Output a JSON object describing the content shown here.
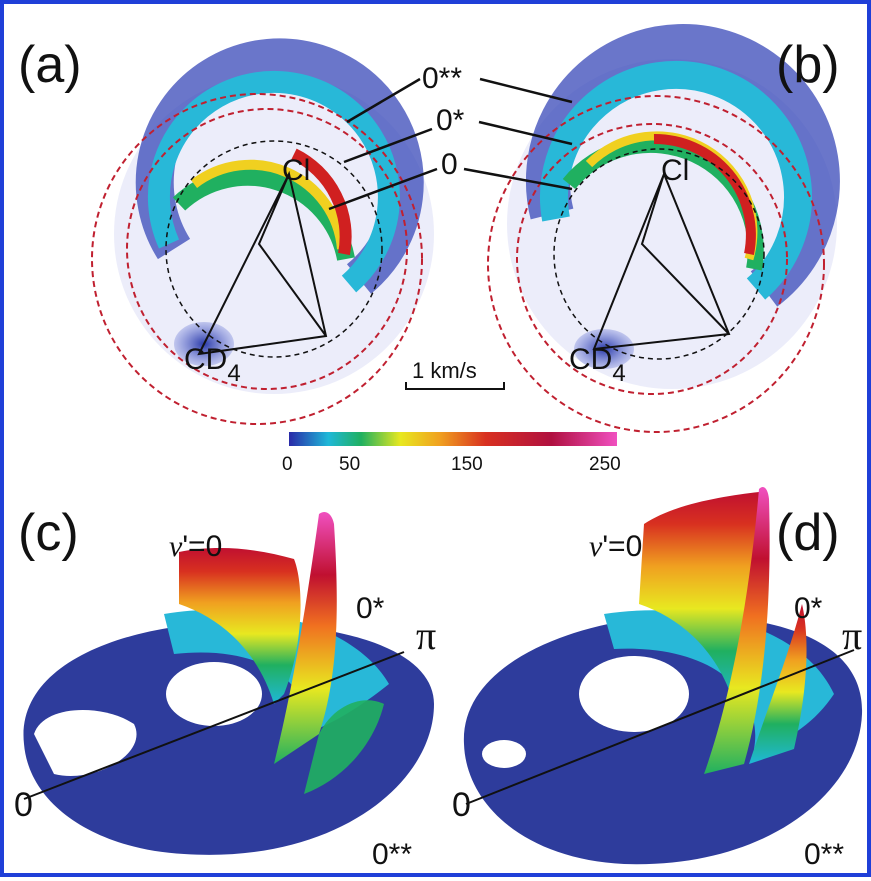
{
  "panels": {
    "a": "(a)",
    "b": "(b)",
    "c": "(c)",
    "d": "(d)"
  },
  "rings": {
    "double_star": "0**",
    "single_star": "0*",
    "zero": "0"
  },
  "species": {
    "cl": "Cl",
    "cd": "CD",
    "cd_sub": "4"
  },
  "scale_bar": "1 km/s",
  "colorbar": {
    "ticks": [
      "0",
      "50",
      "150",
      "250"
    ],
    "colors": [
      "#2a2aa8",
      "#1fb8d8",
      "#20b060",
      "#e8e820",
      "#f0a020",
      "#d83020",
      "#b01040",
      "#f050c0"
    ]
  },
  "surface_labels": {
    "v_prefix": "v",
    "v_suffix": "'=0",
    "star": "0*",
    "double_star": "0**",
    "pi": "π",
    "zero": "0"
  }
}
